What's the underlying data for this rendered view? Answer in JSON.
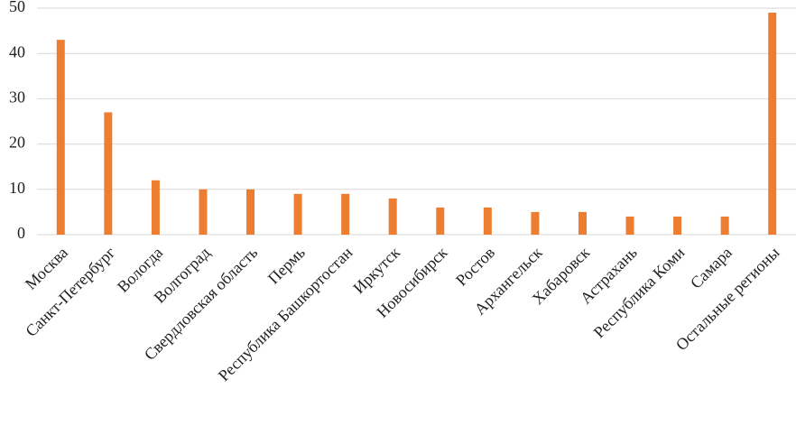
{
  "chart_data": {
    "type": "bar",
    "categories": [
      "Москва",
      "Санкт-Петербург",
      "Вологда",
      "Волгоград",
      "Свердловская область",
      "Пермь",
      "Республика Башкортостан",
      "Иркутск",
      "Новосибирск",
      "Ростов",
      "Архангельск",
      "Хабаровск",
      "Астрахань",
      "Республика Коми",
      "Самара",
      "Остальные регионы"
    ],
    "values": [
      43,
      27,
      12,
      10,
      10,
      9,
      9,
      8,
      6,
      6,
      5,
      5,
      4,
      4,
      4,
      49
    ],
    "color": "#ed7d31",
    "ylim": [
      0,
      50
    ],
    "yticks": [
      0,
      10,
      20,
      30,
      40,
      50
    ],
    "grid": true
  }
}
